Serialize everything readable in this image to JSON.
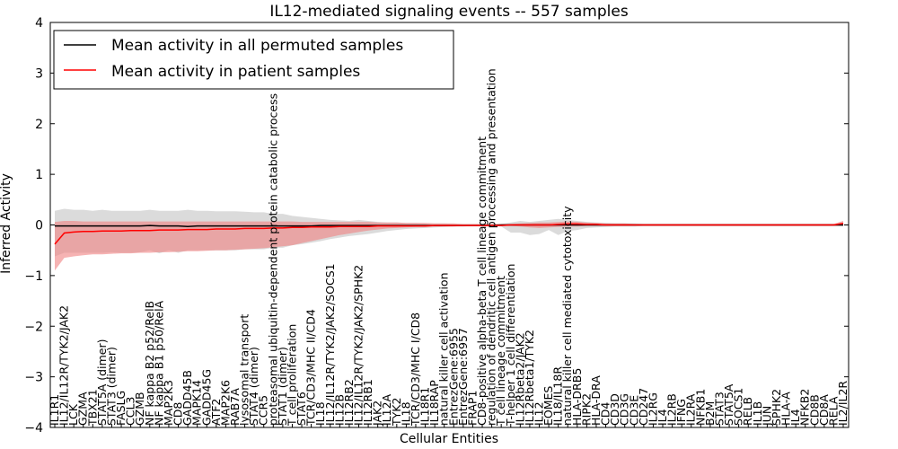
{
  "chart_data": {
    "type": "line",
    "title": "IL12-mediated signaling events -- 557 samples",
    "xlabel": "Cellular Entities",
    "ylabel": "Inferred Activity",
    "ylim": [
      -4,
      4
    ],
    "yticks": [
      -4,
      -3,
      -2,
      -1,
      0,
      1,
      2,
      3,
      4
    ],
    "legend": {
      "placement": "top-left",
      "entries": [
        {
          "label": "Mean activity in all permuted samples",
          "color": "#000000"
        },
        {
          "label": "Mean activity in patient samples",
          "color": "#ff0000"
        }
      ]
    },
    "categories": [
      "IL1R1",
      "IL12/IL12R/TYK2/JAK2",
      "LCK",
      "GZMA",
      "TBX21",
      "STAT5A (dimer)",
      "STAT3 (dimer)",
      "FASLG",
      "CCL3",
      "GZMB",
      "NF kappa B2 p52/RelB",
      "NF kappa B1 p50/RelA",
      "MAP2K3",
      "CD8",
      "GADD45B",
      "MAPK14",
      "GADD45G",
      "ATF2",
      "MAP2K6",
      "RAB7A",
      "lysosomal transport",
      "STAT4 (dimer)",
      "CCR5",
      "proteasomal ubiquitin-dependent protein catabolic process",
      "STAT1 (dimer)",
      "T cell proliferation",
      "STAT6",
      "TCR/CD3/MHC II/CD4",
      "IL18",
      "IL12/IL12R/TYK2/JAK2/SOCS1",
      "IL12B",
      "IL12RB2",
      "IL12/IL12R/TYK2/JAK2/SPHK2",
      "IL12RB1",
      "JAK2",
      "IL12A",
      "TYK2",
      "IL18",
      "TCR/CD3/MHC I/CD8",
      "IL18R1",
      "IL18RAP",
      "natural killer cell activation",
      "EntrezGene:6955",
      "EntrezGene:6957",
      "FRAP1",
      "CD8-positive alpha-beta T cell lineage commitment",
      "regulation of dendritic cell antigen processing and presentation",
      "T cell lineage commitment",
      "T-helper 1 cell differentiation",
      "IL12Rbeta2/JAK2",
      "IL12Rbeta1/TYK2",
      "IL12",
      "EOMES",
      "IL18/IL18R",
      "natural killer cell mediated cytotoxicity",
      "HLA-DRB5",
      "RIPK2",
      "HLA-DRA",
      "CD4",
      "CD3D",
      "CD3G",
      "CD3E",
      "CD247",
      "IL2RG",
      "IL4",
      "IL2RB",
      "IFNG",
      "IL2RA",
      "NFKB1",
      "B2M",
      "STAT3",
      "STAT5A",
      "SOCS1",
      "RELB",
      "IL1B",
      "JUN",
      "SPHK2",
      "HLA-A",
      "IL4",
      "NFKB2",
      "CD8B",
      "CD8A",
      "RELA",
      "IL2/IL2R"
    ],
    "series": [
      {
        "name": "Mean activity in all permuted samples",
        "color": "#000000",
        "values": [
          -0.02,
          -0.02,
          -0.02,
          -0.02,
          -0.02,
          -0.02,
          -0.02,
          -0.02,
          -0.02,
          -0.02,
          -0.01,
          -0.02,
          -0.02,
          -0.02,
          -0.03,
          -0.02,
          -0.02,
          -0.02,
          -0.02,
          -0.02,
          -0.02,
          -0.02,
          -0.02,
          -0.02,
          -0.02,
          -0.02,
          -0.02,
          -0.02,
          -0.01,
          -0.01,
          -0.01,
          -0.01,
          -0.01,
          -0.01,
          -0.01,
          -0.01,
          -0.01,
          -0.01,
          -0.01,
          -0.01,
          -0.01,
          -0.01,
          -0.01,
          -0.01,
          -0.01,
          -0.01,
          -0.01,
          0.0,
          0.0,
          0.0,
          0.0,
          0.0,
          0.0,
          0.0,
          0.0,
          0.0,
          0.0,
          0.0,
          0.0,
          0.0,
          0.0,
          0.0,
          0.0,
          0.0,
          0.0,
          0.0,
          0.0,
          0.0,
          0.0,
          0.0,
          0.0,
          0.0,
          0.0,
          0.0,
          0.0,
          0.0,
          0.0,
          0.0,
          0.0,
          0.0,
          0.0,
          0.0,
          0.0,
          0.0
        ]
      },
      {
        "name": "Mean activity in patient samples",
        "color": "#ff0000",
        "values": [
          -0.38,
          -0.16,
          -0.14,
          -0.13,
          -0.13,
          -0.12,
          -0.12,
          -0.12,
          -0.11,
          -0.11,
          -0.11,
          -0.1,
          -0.1,
          -0.1,
          -0.09,
          -0.09,
          -0.09,
          -0.08,
          -0.08,
          -0.08,
          -0.07,
          -0.07,
          -0.07,
          -0.06,
          -0.06,
          -0.05,
          -0.05,
          -0.04,
          -0.04,
          -0.04,
          -0.03,
          -0.03,
          -0.03,
          -0.03,
          -0.02,
          -0.02,
          -0.02,
          -0.02,
          -0.02,
          -0.02,
          -0.01,
          -0.01,
          -0.01,
          -0.01,
          -0.01,
          -0.01,
          -0.01,
          -0.01,
          0.0,
          0.0,
          0.0,
          0.0,
          0.0,
          0.01,
          0.02,
          0.02,
          0.01,
          0.01,
          0.0,
          0.0,
          0.0,
          0.0,
          0.0,
          0.0,
          0.0,
          0.0,
          0.0,
          0.0,
          0.0,
          0.0,
          0.0,
          0.0,
          0.0,
          0.0,
          0.0,
          0.0,
          0.0,
          0.0,
          0.0,
          0.0,
          0.0,
          0.0,
          0.0,
          0.03
        ]
      }
    ],
    "bands": [
      {
        "name": "permuted spread",
        "color": "#b0b0b0",
        "lower": [
          -0.62,
          -0.55,
          -0.55,
          -0.55,
          -0.55,
          -0.55,
          -0.54,
          -0.55,
          -0.55,
          -0.54,
          -0.5,
          -0.56,
          -0.5,
          -0.55,
          -0.5,
          -0.5,
          -0.5,
          -0.5,
          -0.5,
          -0.5,
          -0.48,
          -0.48,
          -0.48,
          -0.45,
          -0.45,
          -0.4,
          -0.38,
          -0.35,
          -0.32,
          -0.28,
          -0.25,
          -0.22,
          -0.2,
          -0.18,
          -0.15,
          -0.12,
          -0.1,
          -0.08,
          -0.07,
          -0.06,
          -0.05,
          -0.04,
          -0.03,
          -0.03,
          -0.02,
          -0.02,
          -0.02,
          -0.03,
          -0.15,
          -0.15,
          -0.2,
          -0.18,
          -0.1,
          -0.2,
          -0.12,
          -0.1,
          -0.06,
          -0.05,
          -0.04,
          -0.03,
          -0.03,
          -0.03,
          -0.02,
          -0.02,
          -0.02,
          -0.02,
          -0.02,
          -0.02,
          -0.02,
          -0.02,
          -0.02,
          -0.02,
          -0.02,
          -0.02,
          -0.02,
          -0.02,
          -0.02,
          -0.02,
          -0.02,
          -0.02,
          -0.02,
          -0.02,
          -0.02,
          -0.02
        ],
        "upper": [
          0.28,
          0.32,
          0.3,
          0.3,
          0.28,
          0.3,
          0.28,
          0.28,
          0.28,
          0.28,
          0.3,
          0.28,
          0.28,
          0.28,
          0.3,
          0.28,
          0.28,
          0.27,
          0.27,
          0.27,
          0.26,
          0.25,
          0.25,
          0.22,
          0.22,
          0.18,
          0.16,
          0.14,
          0.12,
          0.1,
          0.09,
          0.08,
          0.1,
          0.08,
          0.06,
          0.05,
          0.05,
          0.04,
          0.04,
          0.03,
          0.03,
          0.03,
          0.02,
          0.02,
          0.02,
          0.02,
          0.02,
          0.02,
          0.05,
          0.08,
          0.06,
          0.08,
          0.1,
          0.12,
          0.1,
          0.08,
          0.06,
          0.05,
          0.04,
          0.03,
          0.03,
          0.03,
          0.02,
          0.02,
          0.02,
          0.02,
          0.02,
          0.02,
          0.02,
          0.02,
          0.02,
          0.02,
          0.02,
          0.02,
          0.02,
          0.02,
          0.02,
          0.02,
          0.02,
          0.02,
          0.02,
          0.02,
          0.02,
          0.02
        ]
      },
      {
        "name": "patient spread",
        "color": "#f08080",
        "lower": [
          -0.9,
          -0.65,
          -0.62,
          -0.6,
          -0.58,
          -0.58,
          -0.57,
          -0.56,
          -0.56,
          -0.55,
          -0.55,
          -0.54,
          -0.54,
          -0.53,
          -0.52,
          -0.52,
          -0.51,
          -0.5,
          -0.5,
          -0.49,
          -0.48,
          -0.47,
          -0.46,
          -0.44,
          -0.42,
          -0.4,
          -0.36,
          -0.32,
          -0.28,
          -0.24,
          -0.2,
          -0.17,
          -0.14,
          -0.11,
          -0.09,
          -0.07,
          -0.06,
          -0.05,
          -0.04,
          -0.04,
          -0.03,
          -0.03,
          -0.03,
          -0.02,
          -0.02,
          -0.02,
          -0.02,
          -0.02,
          -0.02,
          -0.03,
          -0.05,
          -0.06,
          -0.05,
          -0.04,
          -0.03,
          -0.03,
          -0.02,
          -0.02,
          -0.02,
          -0.02,
          -0.02,
          -0.02,
          -0.02,
          -0.02,
          -0.02,
          -0.02,
          -0.02,
          -0.02,
          -0.02,
          -0.02,
          -0.02,
          -0.02,
          -0.02,
          -0.02,
          -0.02,
          -0.02,
          -0.02,
          -0.02,
          -0.02,
          -0.02,
          -0.02,
          -0.02,
          -0.02,
          -0.02
        ],
        "upper": [
          0.06,
          0.08,
          0.08,
          0.07,
          0.07,
          0.07,
          0.07,
          0.07,
          0.07,
          0.07,
          0.07,
          0.07,
          0.07,
          0.07,
          0.07,
          0.07,
          0.07,
          0.07,
          0.07,
          0.07,
          0.07,
          0.07,
          0.07,
          0.07,
          0.07,
          0.07,
          0.06,
          0.06,
          0.06,
          0.06,
          0.06,
          0.06,
          0.06,
          0.06,
          0.05,
          0.05,
          0.05,
          0.04,
          0.04,
          0.04,
          0.03,
          0.03,
          0.03,
          0.02,
          0.02,
          0.02,
          0.02,
          0.02,
          0.02,
          0.03,
          0.04,
          0.05,
          0.05,
          0.06,
          0.07,
          0.06,
          0.05,
          0.04,
          0.03,
          0.03,
          0.03,
          0.02,
          0.02,
          0.02,
          0.02,
          0.02,
          0.02,
          0.02,
          0.02,
          0.02,
          0.02,
          0.02,
          0.02,
          0.02,
          0.02,
          0.02,
          0.02,
          0.02,
          0.02,
          0.02,
          0.02,
          0.02,
          0.02,
          0.08
        ]
      }
    ]
  }
}
